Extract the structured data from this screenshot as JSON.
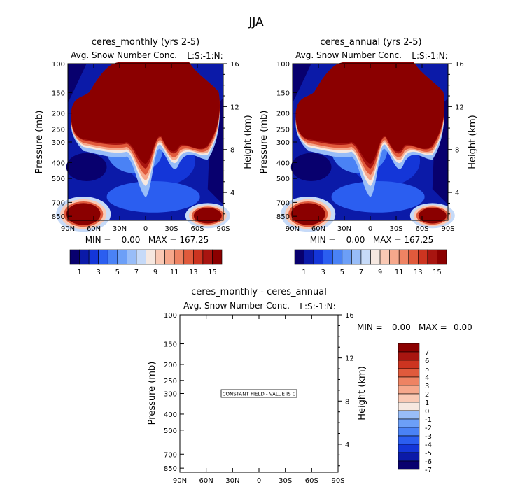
{
  "title": "JJA",
  "colors": {
    "levels16": [
      "#08006e",
      "#0b1aa8",
      "#1436d8",
      "#2b5ef0",
      "#4a82f5",
      "#6c9ff7",
      "#98bdf8",
      "#c6daf8",
      "#f6e8e0",
      "#fac9b4",
      "#f6a88c",
      "#ee8363",
      "#e05a3c",
      "#cc3420",
      "#a81510",
      "#8b0000"
    ],
    "levels15": [
      "#08006e",
      "#0b1aa8",
      "#1436d8",
      "#2b5ef0",
      "#4a82f5",
      "#6c9ff7",
      "#98bdf8",
      "#f6e8e0",
      "#fac9b4",
      "#f6a88c",
      "#ee8363",
      "#e05a3c",
      "#cc3420",
      "#a81510",
      "#8b0000"
    ]
  },
  "chart_data": [
    {
      "type": "heatmap",
      "title": "ceres_monthly (yrs 2-5)",
      "subtitle": "Avg. Snow Number Conc.",
      "tag": "L:S:-1:N:",
      "ylabel": "Pressure (mb)",
      "ylabel_right": "Height (km)",
      "x_ticks": [
        "90N",
        "60N",
        "30N",
        "0",
        "30S",
        "60S",
        "90S"
      ],
      "x_range": [
        90,
        -90
      ],
      "y_ticks": [
        100,
        150,
        200,
        250,
        300,
        400,
        500,
        700,
        850
      ],
      "y_range": [
        100,
        900
      ],
      "y_scale": "log",
      "height_ticks": [
        4,
        8,
        12,
        16
      ],
      "min_max": "MIN =    0.00   MAX = 167.25",
      "colorbar_labels": [
        "1",
        "3",
        "5",
        "7",
        "9",
        "11",
        "13",
        "15"
      ]
    },
    {
      "type": "heatmap",
      "title": "ceres_annual (yrs 2-5)",
      "subtitle": "Avg. Snow Number Conc.",
      "tag": "L:S:-1:N:",
      "ylabel": "Pressure (mb)",
      "ylabel_right": "Height (km)",
      "x_ticks": [
        "90N",
        "60N",
        "30N",
        "0",
        "30S",
        "60S",
        "90S"
      ],
      "x_range": [
        90,
        -90
      ],
      "y_ticks": [
        100,
        150,
        200,
        250,
        300,
        400,
        500,
        700,
        850
      ],
      "y_range": [
        100,
        900
      ],
      "y_scale": "log",
      "height_ticks": [
        4,
        8,
        12,
        16
      ],
      "min_max": "MIN =    0.00   MAX = 167.25",
      "colorbar_labels": [
        "1",
        "3",
        "5",
        "7",
        "9",
        "11",
        "13",
        "15"
      ]
    },
    {
      "type": "heatmap",
      "title": "ceres_monthly - ceres_annual",
      "subtitle": "Avg. Snow Number Conc.",
      "tag": "L:S:-1:N:",
      "ylabel": "Pressure (mb)",
      "ylabel_right": "Height (km)",
      "x_ticks": [
        "90N",
        "60N",
        "30N",
        "0",
        "30S",
        "60S",
        "90S"
      ],
      "x_range": [
        90,
        -90
      ],
      "y_ticks": [
        100,
        150,
        200,
        250,
        300,
        400,
        500,
        700,
        850
      ],
      "y_range": [
        100,
        900
      ],
      "y_scale": "log",
      "height_ticks": [
        4,
        8,
        12,
        16
      ],
      "annotation": "CONSTANT FIELD - VALUE IS 0",
      "min_label": "MIN =",
      "min_value": "0.00",
      "max_label": "MAX =",
      "max_value": "0.00",
      "colorbar_labels": [
        "7",
        "6",
        "5",
        "4",
        "3",
        "2",
        "1",
        "0",
        "-1",
        "-2",
        "-3",
        "-4",
        "-5",
        "-6",
        "-7"
      ]
    }
  ]
}
